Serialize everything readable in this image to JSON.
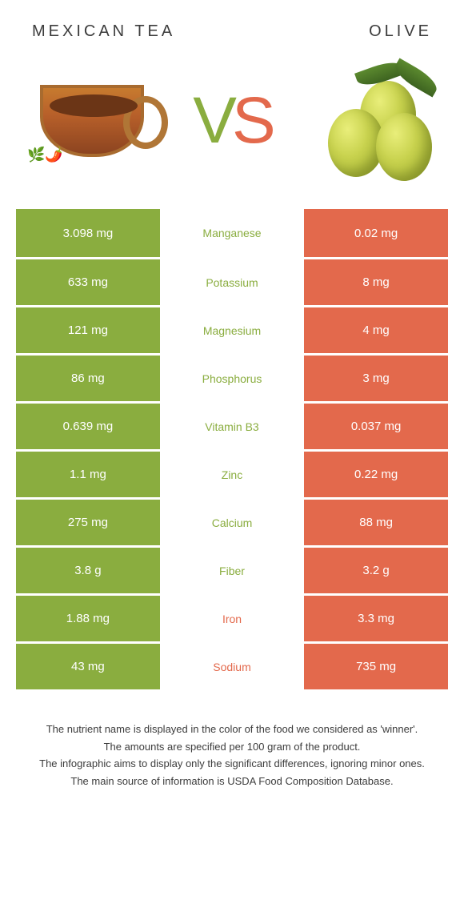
{
  "header": {
    "left": "Mexican Tea",
    "right": "Olive"
  },
  "colors": {
    "green": "#8aad3f",
    "orange": "#e3694c",
    "row_divider": "#ffffff"
  },
  "rows": [
    {
      "left": "3.098 mg",
      "label": "Manganese",
      "right": "0.02 mg",
      "winner": "left"
    },
    {
      "left": "633 mg",
      "label": "Potassium",
      "right": "8 mg",
      "winner": "left"
    },
    {
      "left": "121 mg",
      "label": "Magnesium",
      "right": "4 mg",
      "winner": "left"
    },
    {
      "left": "86 mg",
      "label": "Phosphorus",
      "right": "3 mg",
      "winner": "left"
    },
    {
      "left": "0.639 mg",
      "label": "Vitamin B3",
      "right": "0.037 mg",
      "winner": "left"
    },
    {
      "left": "1.1 mg",
      "label": "Zinc",
      "right": "0.22 mg",
      "winner": "left"
    },
    {
      "left": "275 mg",
      "label": "Calcium",
      "right": "88 mg",
      "winner": "left"
    },
    {
      "left": "3.8 g",
      "label": "Fiber",
      "right": "3.2 g",
      "winner": "left"
    },
    {
      "left": "1.88 mg",
      "label": "Iron",
      "right": "3.3 mg",
      "winner": "right"
    },
    {
      "left": "43 mg",
      "label": "Sodium",
      "right": "735 mg",
      "winner": "right"
    }
  ],
  "footer": [
    "The nutrient name is displayed in the color of the food we considered as 'winner'.",
    "The amounts are specified per 100 gram of the product.",
    "The infographic aims to display only the significant differences, ignoring minor ones.",
    "The main source of information is USDA Food Composition Database."
  ]
}
